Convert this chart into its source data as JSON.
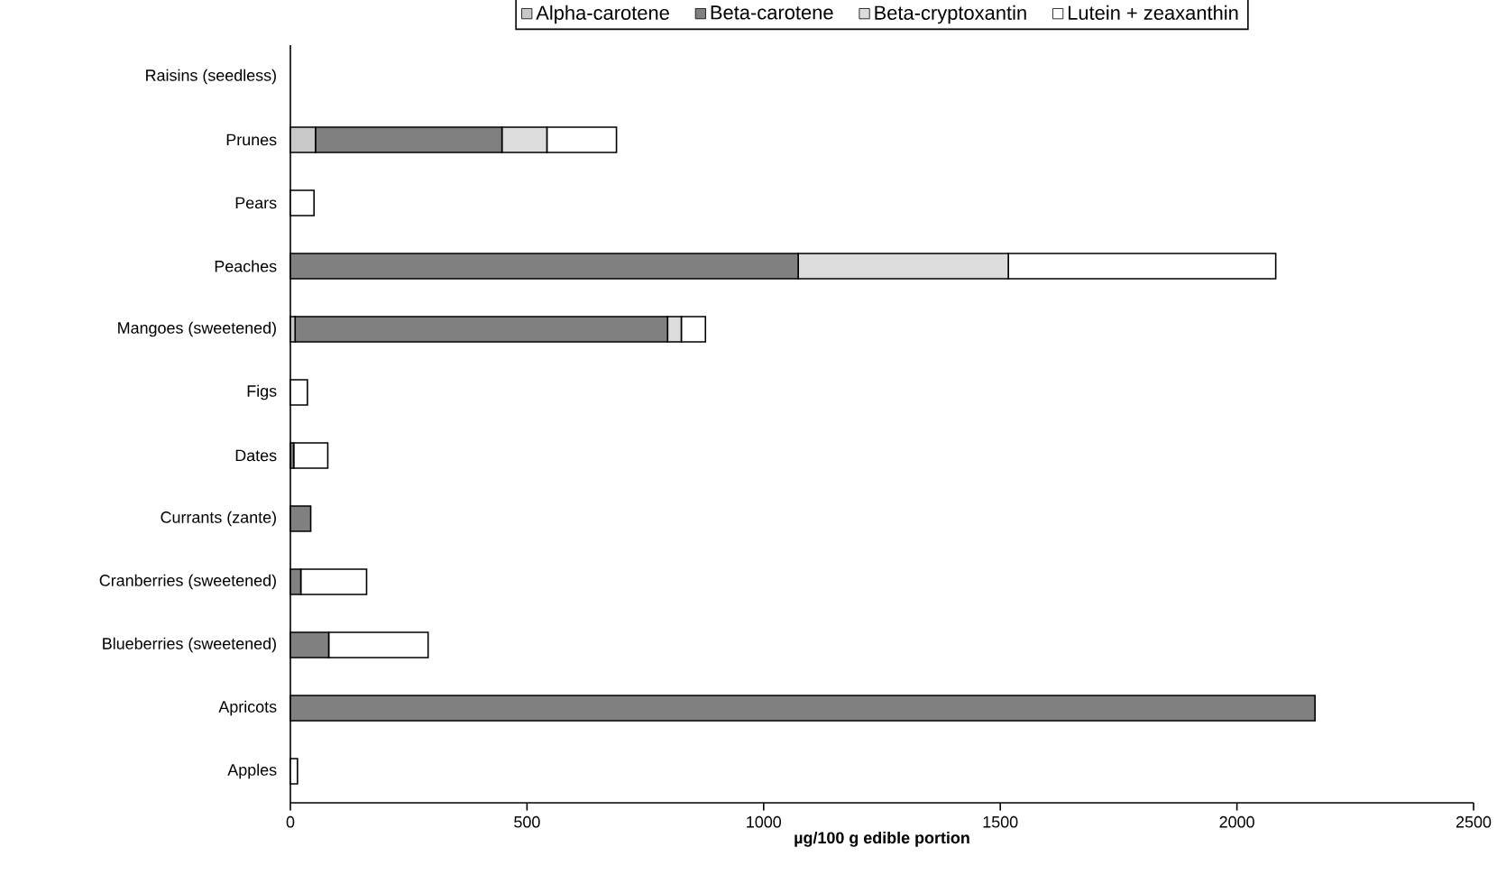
{
  "chart_data": {
    "type": "bar",
    "orientation": "horizontal",
    "stacked": true,
    "xlabel": "µg/100 g edible portion",
    "categories": [
      "Raisins (seedless)",
      "Prunes",
      "Pears",
      "Peaches",
      "Mangoes (sweetened)",
      "Figs",
      "Dates",
      "Currants (zante)",
      "Cranberries (sweetened)",
      "Blueberries (sweetened)",
      "Apricots",
      "Apples"
    ],
    "series": [
      {
        "name": "Alpha-carotene",
        "color": "#c8c8c8",
        "values": [
          0,
          53,
          0,
          0,
          10,
          0,
          0,
          0,
          0,
          0,
          0,
          0
        ]
      },
      {
        "name": "Beta-carotene",
        "color": "#808080",
        "values": [
          0,
          394,
          0,
          1073,
          787,
          0,
          7,
          43,
          22,
          81,
          2165,
          0
        ]
      },
      {
        "name": "Beta-cryptoxantin",
        "color": "#dcdcdc",
        "values": [
          0,
          95,
          0,
          444,
          29,
          0,
          0,
          0,
          0,
          0,
          0,
          0
        ]
      },
      {
        "name": "Lutein + zeaxanthin",
        "color": "#ffffff",
        "values": [
          0,
          147,
          50,
          565,
          51,
          36,
          72,
          0,
          139,
          210,
          0,
          15
        ]
      }
    ],
    "xlim": [
      0,
      2500
    ],
    "xticks": [
      0,
      500,
      1000,
      1500,
      2000,
      2500
    ],
    "legend": "top"
  }
}
